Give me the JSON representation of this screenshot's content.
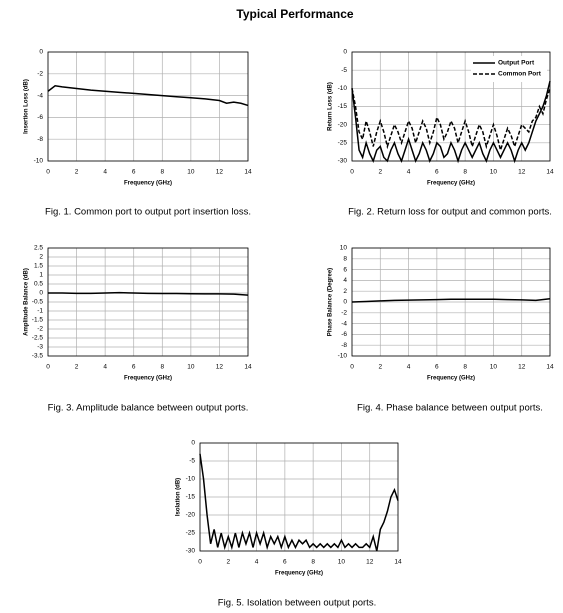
{
  "title": "Typical Performance",
  "chart_data": [
    {
      "type": "line",
      "caption": "Fig. 1.  Common port to output port insertion loss.",
      "xlabel": "Frequency (GHz)",
      "ylabel": "Insertion Loss (dB)",
      "x": [
        0,
        0.5,
        1,
        2,
        3,
        4,
        5,
        6,
        7,
        8,
        9,
        10,
        11,
        12,
        12.5,
        13,
        13.5,
        14
      ],
      "series": [
        {
          "name": "Insertion Loss",
          "color": "#000000",
          "linestyle": "solid",
          "values": [
            -3.6,
            -3.1,
            -3.2,
            -3.35,
            -3.5,
            -3.6,
            -3.7,
            -3.8,
            -3.9,
            -4.0,
            -4.1,
            -4.2,
            -4.3,
            -4.45,
            -4.7,
            -4.6,
            -4.7,
            -4.9
          ]
        }
      ],
      "xlim": [
        0,
        14
      ],
      "ylim": [
        -10,
        0
      ],
      "xticks": [
        0,
        2,
        4,
        6,
        8,
        10,
        12,
        14
      ],
      "yticks": [
        0,
        -2,
        -4,
        -6,
        -8,
        -10
      ],
      "grid": true,
      "legend": false
    },
    {
      "type": "line",
      "caption": "Fig. 2.  Return loss for output and common ports.",
      "xlabel": "Frequency (GHz)",
      "ylabel": "Return Loss (dB)",
      "x": [
        0,
        0.25,
        0.5,
        0.75,
        1,
        1.25,
        1.5,
        1.75,
        2,
        2.25,
        2.5,
        2.75,
        3,
        3.25,
        3.5,
        3.75,
        4,
        4.25,
        4.5,
        4.75,
        5,
        5.25,
        5.5,
        5.75,
        6,
        6.25,
        6.5,
        6.75,
        7,
        7.25,
        7.5,
        7.75,
        8,
        8.25,
        8.5,
        8.75,
        9,
        9.25,
        9.5,
        9.75,
        10,
        10.25,
        10.5,
        10.75,
        11,
        11.25,
        11.5,
        11.75,
        12,
        12.25,
        12.5,
        12.75,
        13,
        13.25,
        13.5,
        13.75,
        14
      ],
      "series": [
        {
          "name": "Output Port",
          "color": "#000000",
          "linestyle": "solid",
          "values": [
            -10,
            -18,
            -27,
            -29,
            -25,
            -28,
            -30,
            -27,
            -26,
            -29,
            -30,
            -27,
            -25,
            -28,
            -30,
            -27,
            -24,
            -27,
            -30,
            -28,
            -25,
            -27,
            -30,
            -28,
            -25,
            -26,
            -29,
            -28,
            -25,
            -27,
            -30,
            -27,
            -25,
            -27,
            -29,
            -27,
            -25,
            -28,
            -30,
            -27,
            -25,
            -27,
            -29,
            -27,
            -25,
            -27,
            -30,
            -27,
            -25,
            -27,
            -25,
            -22,
            -19,
            -17,
            -15,
            -12,
            -8
          ]
        },
        {
          "name": "Common Port",
          "color": "#000000",
          "linestyle": "dashed",
          "values": [
            -10,
            -15,
            -22,
            -24,
            -19,
            -22,
            -26,
            -22,
            -19,
            -22,
            -26,
            -23,
            -20,
            -22,
            -25,
            -22,
            -19,
            -21,
            -25,
            -22,
            -19,
            -21,
            -25,
            -22,
            -18,
            -20,
            -24,
            -22,
            -19,
            -21,
            -25,
            -22,
            -19,
            -22,
            -26,
            -23,
            -20,
            -22,
            -26,
            -23,
            -20,
            -23,
            -27,
            -24,
            -21,
            -23,
            -26,
            -23,
            -20,
            -21,
            -22,
            -19,
            -18,
            -15,
            -17,
            -13,
            -10
          ]
        }
      ],
      "xlim": [
        0,
        14
      ],
      "ylim": [
        -30,
        0
      ],
      "xticks": [
        0,
        2,
        4,
        6,
        8,
        10,
        12,
        14
      ],
      "yticks": [
        0,
        -5,
        -10,
        -15,
        -20,
        -25,
        -30
      ],
      "grid": true,
      "legend": "upper right"
    },
    {
      "type": "line",
      "caption": "Fig. 3.  Amplitude balance between output ports.",
      "xlabel": "Frequency (GHz)",
      "ylabel": "Amplitude Balance (dB)",
      "x": [
        0,
        1,
        2,
        3,
        4,
        5,
        6,
        7,
        8,
        9,
        10,
        11,
        12,
        13,
        14
      ],
      "series": [
        {
          "name": "Amplitude Balance",
          "color": "#000000",
          "linestyle": "solid",
          "values": [
            0,
            0,
            -0.02,
            -0.02,
            0,
            0.02,
            0,
            -0.02,
            -0.03,
            -0.03,
            -0.04,
            -0.05,
            -0.05,
            -0.06,
            -0.12
          ]
        }
      ],
      "xlim": [
        0,
        14
      ],
      "ylim": [
        -3.5,
        2.5
      ],
      "xticks": [
        0,
        2,
        4,
        6,
        8,
        10,
        12,
        14
      ],
      "yticks": [
        2.5,
        2,
        1.5,
        1,
        0.5,
        0,
        -0.5,
        -1,
        -1.5,
        -2,
        -2.5,
        -3,
        -3.5
      ],
      "grid": true,
      "legend": false
    },
    {
      "type": "line",
      "caption": "Fig. 4.  Phase balance between output ports.",
      "xlabel": "Frequency (GHz)",
      "ylabel": "Phase Balance (Degree)",
      "x": [
        0,
        1,
        2,
        3,
        4,
        5,
        6,
        7,
        8,
        9,
        10,
        11,
        12,
        13,
        14
      ],
      "series": [
        {
          "name": "Phase Balance",
          "color": "#000000",
          "linestyle": "solid",
          "values": [
            0,
            0.1,
            0.2,
            0.3,
            0.35,
            0.4,
            0.45,
            0.5,
            0.5,
            0.5,
            0.5,
            0.45,
            0.4,
            0.3,
            0.6
          ]
        }
      ],
      "xlim": [
        0,
        14
      ],
      "ylim": [
        -10,
        10
      ],
      "xticks": [
        0,
        2,
        4,
        6,
        8,
        10,
        12,
        14
      ],
      "yticks": [
        10,
        8,
        6,
        4,
        2,
        0,
        -2,
        -4,
        -6,
        -8,
        -10
      ],
      "grid": true,
      "legend": false
    },
    {
      "type": "line",
      "caption": "Fig. 5.  Isolation between output ports.",
      "xlabel": "Frequency (GHz)",
      "ylabel": "Isolation (dB)",
      "x": [
        0,
        0.25,
        0.5,
        0.75,
        1,
        1.25,
        1.5,
        1.75,
        2,
        2.25,
        2.5,
        2.75,
        3,
        3.25,
        3.5,
        3.75,
        4,
        4.25,
        4.5,
        4.75,
        5,
        5.25,
        5.5,
        5.75,
        6,
        6.25,
        6.5,
        6.75,
        7,
        7.25,
        7.5,
        7.75,
        8,
        8.25,
        8.5,
        8.75,
        9,
        9.25,
        9.5,
        9.75,
        10,
        10.25,
        10.5,
        10.75,
        11,
        11.25,
        11.5,
        11.75,
        12,
        12.25,
        12.5,
        12.75,
        13,
        13.25,
        13.5,
        13.75,
        14
      ],
      "series": [
        {
          "name": "Isolation",
          "color": "#000000",
          "linestyle": "solid",
          "values": [
            -3,
            -10,
            -20,
            -28,
            -24,
            -29,
            -25,
            -29,
            -26,
            -29,
            -25,
            -29,
            -25,
            -28,
            -25,
            -29,
            -25,
            -28,
            -25,
            -29,
            -26,
            -28,
            -26,
            -29,
            -26,
            -29,
            -27,
            -29,
            -27,
            -28,
            -27,
            -29,
            -28,
            -29,
            -28,
            -29,
            -28,
            -29,
            -28,
            -29,
            -27,
            -29,
            -28,
            -29,
            -28,
            -29,
            -29,
            -28,
            -29,
            -26,
            -30,
            -24,
            -22,
            -19,
            -15,
            -13,
            -16
          ]
        }
      ],
      "xlim": [
        0,
        14
      ],
      "ylim": [
        -30,
        0
      ],
      "xticks": [
        0,
        2,
        4,
        6,
        8,
        10,
        12,
        14
      ],
      "yticks": [
        0,
        -5,
        -10,
        -15,
        -20,
        -25,
        -30
      ],
      "grid": true,
      "legend": false
    }
  ]
}
